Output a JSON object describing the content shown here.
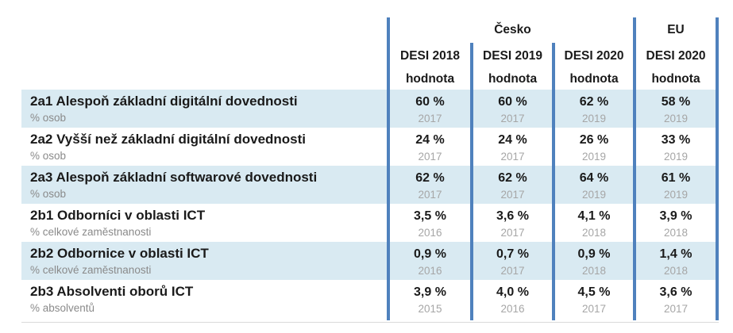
{
  "table": {
    "groups": [
      {
        "label": "Česko"
      },
      {
        "label": "EU"
      }
    ],
    "columns": [
      {
        "edition": "DESI 2018",
        "measure": "hodnota"
      },
      {
        "edition": "DESI 2019",
        "measure": "hodnota"
      },
      {
        "edition": "DESI 2020",
        "measure": "hodnota"
      },
      {
        "edition": "DESI 2020",
        "measure": "hodnota"
      }
    ],
    "rows": [
      {
        "code_title": "2a1 Alespoň základní digitální dovednosti",
        "unit": "% osob",
        "cells": [
          {
            "value": "60 %",
            "year": "2017"
          },
          {
            "value": "60 %",
            "year": "2017"
          },
          {
            "value": "62 %",
            "year": "2019"
          },
          {
            "value": "58 %",
            "year": "2019"
          }
        ]
      },
      {
        "code_title": "2a2 Vyšší než základní digitální dovednosti",
        "unit": "% osob",
        "cells": [
          {
            "value": "24 %",
            "year": "2017"
          },
          {
            "value": "24 %",
            "year": "2017"
          },
          {
            "value": "26 %",
            "year": "2019"
          },
          {
            "value": "33 %",
            "year": "2019"
          }
        ]
      },
      {
        "code_title": "2a3 Alespoň základní softwarové dovednosti",
        "unit": "% osob",
        "cells": [
          {
            "value": "62 %",
            "year": "2017"
          },
          {
            "value": "62 %",
            "year": "2017"
          },
          {
            "value": "64 %",
            "year": "2019"
          },
          {
            "value": "61 %",
            "year": "2019"
          }
        ]
      },
      {
        "code_title": "2b1 Odborníci v oblasti ICT",
        "unit": "% celkové zaměstnanosti",
        "cells": [
          {
            "value": "3,5 %",
            "year": "2016"
          },
          {
            "value": "3,6 %",
            "year": "2017"
          },
          {
            "value": "4,1 %",
            "year": "2018"
          },
          {
            "value": "3,9 %",
            "year": "2018"
          }
        ]
      },
      {
        "code_title": "2b2 Odbornice v oblasti ICT",
        "unit": "% celkové zaměstnanosti",
        "cells": [
          {
            "value": "0,9 %",
            "year": "2016"
          },
          {
            "value": "0,7 %",
            "year": "2017"
          },
          {
            "value": "0,9 %",
            "year": "2018"
          },
          {
            "value": "1,4 %",
            "year": "2018"
          }
        ]
      },
      {
        "code_title": "2b3 Absolventi oborů ICT",
        "unit": "% absolventů",
        "cells": [
          {
            "value": "3,9 %",
            "year": "2015"
          },
          {
            "value": "4,0 %",
            "year": "2016"
          },
          {
            "value": "4,5 %",
            "year": "2017"
          },
          {
            "value": "3,6 %",
            "year": "2017"
          }
        ]
      }
    ]
  },
  "colors": {
    "separator_blue": "#4f81bd",
    "row_highlight_blue": "#d9eaf2",
    "year_gray": "#a6a6a6",
    "unit_gray": "#8a8a8a",
    "text_dark": "#1a1a1a",
    "bottom_rule_gray": "#d9d9d9"
  }
}
